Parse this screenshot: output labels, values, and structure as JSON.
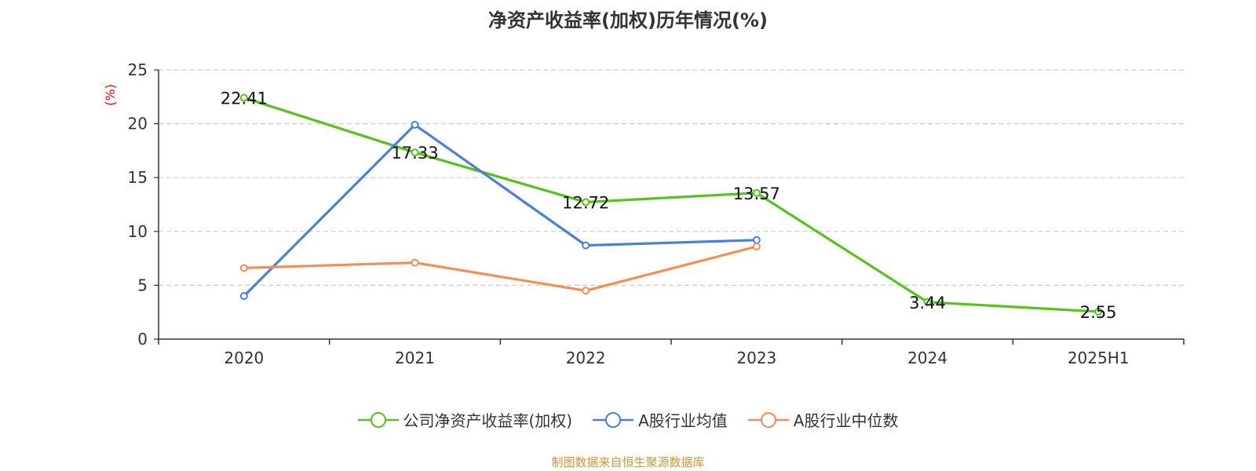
{
  "chart_data": {
    "type": "line",
    "title": "净资产收益率(加权)历年情况(%)",
    "ylabel": "(%)",
    "xlabel": "",
    "categories": [
      "2020",
      "2021",
      "2022",
      "2023",
      "2024",
      "2025H1"
    ],
    "ylim": [
      0,
      25
    ],
    "yticks": [
      0,
      5,
      10,
      15,
      20,
      25
    ],
    "grid": true,
    "legend_position": "bottom",
    "series": [
      {
        "name": "公司净资产收益率(加权)",
        "color": "#52c41a",
        "values": [
          22.41,
          17.33,
          12.72,
          13.57,
          3.44,
          2.55
        ],
        "data_labels": [
          "22.41",
          "17.33",
          "12.72",
          "13.57",
          "3.44",
          "2.55"
        ]
      },
      {
        "name": "A股行业均值",
        "color": "#4a7fde",
        "values": [
          4.0,
          19.9,
          8.7,
          9.2,
          null,
          null
        ]
      },
      {
        "name": "A股行业中位数",
        "color": "#f78d55",
        "values": [
          6.6,
          7.1,
          4.5,
          8.6,
          null,
          null
        ]
      }
    ],
    "source": "制图数据来自恒生聚源数据库"
  }
}
